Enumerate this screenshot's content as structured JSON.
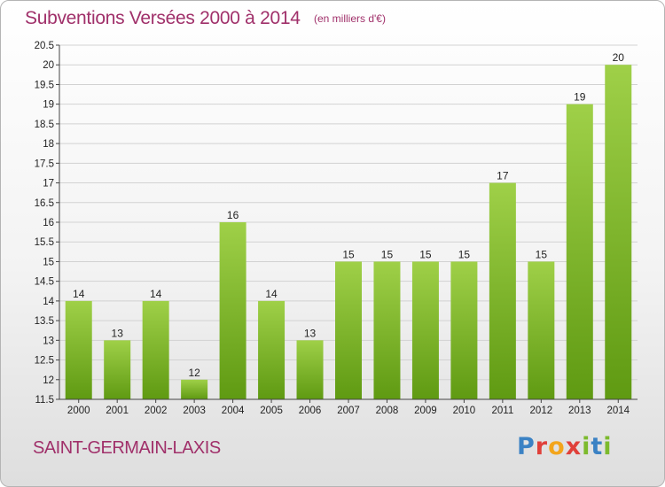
{
  "header": {
    "title": "Subventions Versées 2000 à 2014",
    "subtitle": "(en milliers d'€)"
  },
  "footer": {
    "place": "SAINT-GERMAIN-LAXIS",
    "logo_text": "Proxiti"
  },
  "colors": {
    "title": "#a0306a",
    "bar_light": "#9fd048",
    "bar_dark": "#5f9a12",
    "grid": "#cfcfcf"
  },
  "chart_data": {
    "type": "bar",
    "title": "Subventions Versées 2000 à 2014",
    "subtitle": "(en milliers d'€)",
    "xlabel": "",
    "ylabel": "",
    "categories": [
      "2000",
      "2001",
      "2002",
      "2003",
      "2004",
      "2005",
      "2006",
      "2007",
      "2008",
      "2009",
      "2010",
      "2011",
      "2012",
      "2013",
      "2014"
    ],
    "values": [
      14,
      13,
      14,
      12,
      16,
      14,
      13,
      15,
      15,
      15,
      15,
      17,
      15,
      19,
      20
    ],
    "ylim": [
      11.5,
      20.5
    ],
    "yticks": [
      "11.5",
      "12",
      "12.5",
      "13",
      "13.5",
      "14",
      "14.5",
      "15",
      "15.5",
      "16",
      "16.5",
      "17",
      "17.5",
      "18",
      "18.5",
      "19",
      "19.5",
      "20",
      "20.5"
    ],
    "grid": true,
    "data_labels": true
  }
}
